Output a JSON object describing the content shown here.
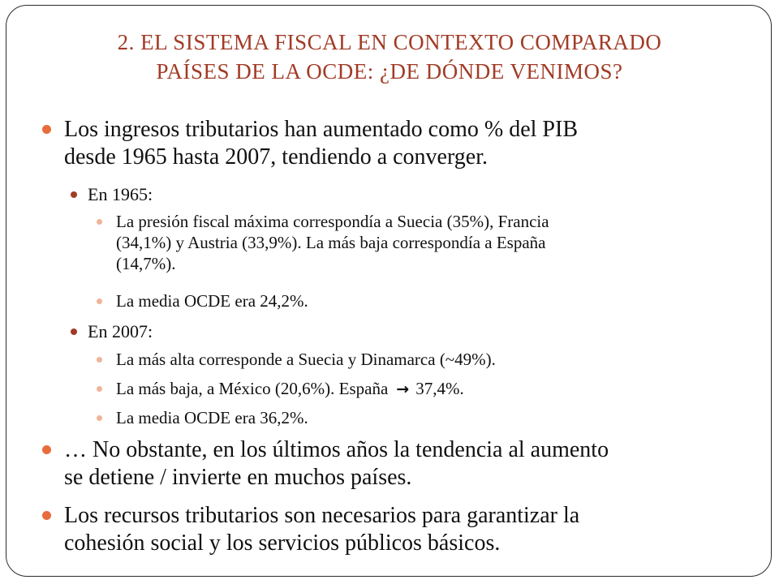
{
  "slide": {
    "title_line1": "2. EL SISTEMA FISCAL EN CONTEXTO COMPARADO",
    "title_line2": "PAÍSES DE LA OCDE: ¿DE DÓNDE VENIMOS?",
    "colors": {
      "title": "#a13b26",
      "bullet_level1": "#e86d3d",
      "bullet_level2": "#a13b26",
      "bullet_level3": "#f0b49a",
      "frame": "#2b2b2b"
    },
    "bullets": {
      "b1_line1": "Los ingresos tributarios han aumentado como % del PIB",
      "b1_line2": "desde 1965 hasta 2007, tendiendo a converger.",
      "sub_1965": "En 1965:",
      "s1965_1_line1": "La presión fiscal máxima correspondía a Suecia (35%), Francia",
      "s1965_1_line2": "(34,1%) y Austria (33,9%). La más baja correspondía a España",
      "s1965_1_line3": "(14,7%).",
      "s1965_2": "La media OCDE era 24,2%.",
      "sub_2007": "En 2007:",
      "s2007_1": "La más alta corresponde a Suecia y  Dinamarca (~49%).",
      "s2007_2_before": "La más baja, a México (20,6%). España",
      "s2007_2_arrow": "→",
      "s2007_2_after": "37,4%.",
      "s2007_3": "La media OCDE era 36,2%.",
      "b2_line1": "… No obstante, en los últimos años la tendencia al aumento",
      "b2_line2": "se detiene / invierte en muchos países.",
      "b3_line1": "Los recursos tributarios son necesarios para garantizar la",
      "b3_line2": "cohesión social y los servicios públicos básicos."
    }
  }
}
